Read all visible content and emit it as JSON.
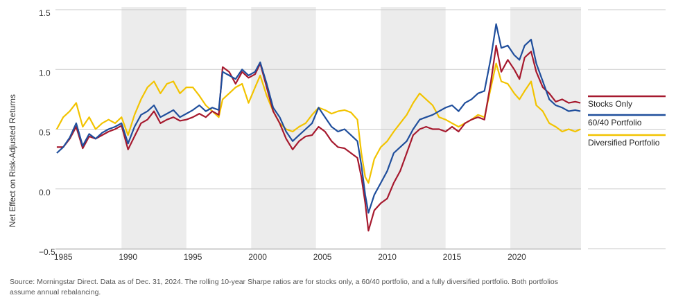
{
  "chart_data": {
    "type": "line",
    "xlabel": "",
    "ylabel": "Net Effect on Risk-Adjusted Returns",
    "xlim": [
      1984.4,
      2024.95
    ],
    "ylim": [
      -0.5,
      1.5
    ],
    "x_ticks": [
      1985,
      1990,
      1995,
      2000,
      2005,
      2010,
      2015,
      2020
    ],
    "y_ticks": [
      1.5,
      1.0,
      0.5,
      0.0,
      -0.5
    ],
    "y_tick_labels": [
      "1.5",
      "1.0",
      "0.5",
      "0.0",
      "−0.5"
    ],
    "grid": "horizontal",
    "shaded_bands": [
      [
        1989.5,
        1994.5
      ],
      [
        1999.5,
        2004.5
      ],
      [
        2009.5,
        2014.5
      ],
      [
        2019.5,
        2024.95
      ]
    ],
    "legend_position": "right",
    "series": [
      {
        "name": "Stocks Only",
        "color": "#a6192e",
        "points": [
          [
            1984.5,
            0.35
          ],
          [
            1985,
            0.35
          ],
          [
            1985.5,
            0.42
          ],
          [
            1986,
            0.52
          ],
          [
            1986.5,
            0.34
          ],
          [
            1987,
            0.44
          ],
          [
            1987.5,
            0.42
          ],
          [
            1988,
            0.45
          ],
          [
            1988.5,
            0.48
          ],
          [
            1989,
            0.5
          ],
          [
            1989.5,
            0.53
          ],
          [
            1990,
            0.33
          ],
          [
            1990.5,
            0.44
          ],
          [
            1991,
            0.55
          ],
          [
            1991.5,
            0.58
          ],
          [
            1992,
            0.65
          ],
          [
            1992.5,
            0.55
          ],
          [
            1993,
            0.58
          ],
          [
            1993.5,
            0.6
          ],
          [
            1994,
            0.57
          ],
          [
            1994.5,
            0.58
          ],
          [
            1995,
            0.6
          ],
          [
            1995.5,
            0.63
          ],
          [
            1996,
            0.6
          ],
          [
            1996.5,
            0.65
          ],
          [
            1997,
            0.62
          ],
          [
            1997.3,
            1.02
          ],
          [
            1997.8,
            0.98
          ],
          [
            1998.3,
            0.88
          ],
          [
            1998.8,
            0.98
          ],
          [
            1999.3,
            0.93
          ],
          [
            1999.8,
            0.96
          ],
          [
            2000.2,
            1.05
          ],
          [
            2000.7,
            0.85
          ],
          [
            2001.2,
            0.65
          ],
          [
            2001.7,
            0.55
          ],
          [
            2002.2,
            0.42
          ],
          [
            2002.7,
            0.33
          ],
          [
            2003.2,
            0.4
          ],
          [
            2003.7,
            0.44
          ],
          [
            2004.2,
            0.45
          ],
          [
            2004.7,
            0.52
          ],
          [
            2005.2,
            0.48
          ],
          [
            2005.7,
            0.4
          ],
          [
            2006.2,
            0.35
          ],
          [
            2006.7,
            0.34
          ],
          [
            2007.2,
            0.3
          ],
          [
            2007.7,
            0.26
          ],
          [
            2008,
            0.1
          ],
          [
            2008.3,
            -0.12
          ],
          [
            2008.55,
            -0.35
          ],
          [
            2009,
            -0.18
          ],
          [
            2009.5,
            -0.12
          ],
          [
            2010,
            -0.08
          ],
          [
            2010.5,
            0.05
          ],
          [
            2011,
            0.15
          ],
          [
            2011.5,
            0.3
          ],
          [
            2012,
            0.45
          ],
          [
            2012.5,
            0.5
          ],
          [
            2013,
            0.52
          ],
          [
            2013.5,
            0.5
          ],
          [
            2014,
            0.5
          ],
          [
            2014.5,
            0.48
          ],
          [
            2015,
            0.52
          ],
          [
            2015.5,
            0.48
          ],
          [
            2016,
            0.55
          ],
          [
            2016.5,
            0.58
          ],
          [
            2017,
            0.6
          ],
          [
            2017.5,
            0.58
          ],
          [
            2018,
            0.9
          ],
          [
            2018.4,
            1.2
          ],
          [
            2018.8,
            0.98
          ],
          [
            2019.3,
            1.08
          ],
          [
            2019.8,
            1.0
          ],
          [
            2020.2,
            0.92
          ],
          [
            2020.6,
            1.1
          ],
          [
            2021.1,
            1.15
          ],
          [
            2021.5,
            0.98
          ],
          [
            2022,
            0.85
          ],
          [
            2022.5,
            0.8
          ],
          [
            2023,
            0.73
          ],
          [
            2023.5,
            0.75
          ],
          [
            2024,
            0.72
          ],
          [
            2024.5,
            0.73
          ],
          [
            2024.9,
            0.72
          ]
        ]
      },
      {
        "name": "60/40 Portfolio",
        "color": "#1f4e9c",
        "points": [
          [
            1984.5,
            0.3
          ],
          [
            1985,
            0.35
          ],
          [
            1985.5,
            0.43
          ],
          [
            1986,
            0.55
          ],
          [
            1986.5,
            0.36
          ],
          [
            1987,
            0.46
          ],
          [
            1987.5,
            0.42
          ],
          [
            1988,
            0.47
          ],
          [
            1988.5,
            0.5
          ],
          [
            1989,
            0.52
          ],
          [
            1989.5,
            0.55
          ],
          [
            1990,
            0.38
          ],
          [
            1990.5,
            0.52
          ],
          [
            1991,
            0.62
          ],
          [
            1991.5,
            0.65
          ],
          [
            1992,
            0.7
          ],
          [
            1992.5,
            0.6
          ],
          [
            1993,
            0.63
          ],
          [
            1993.5,
            0.66
          ],
          [
            1994,
            0.6
          ],
          [
            1994.5,
            0.63
          ],
          [
            1995,
            0.66
          ],
          [
            1995.5,
            0.7
          ],
          [
            1996,
            0.65
          ],
          [
            1996.5,
            0.68
          ],
          [
            1997,
            0.66
          ],
          [
            1997.3,
            0.98
          ],
          [
            1997.8,
            0.95
          ],
          [
            1998.3,
            0.92
          ],
          [
            1998.8,
            1.0
          ],
          [
            1999.3,
            0.95
          ],
          [
            1999.8,
            0.98
          ],
          [
            2000.2,
            1.06
          ],
          [
            2000.7,
            0.88
          ],
          [
            2001.2,
            0.68
          ],
          [
            2001.7,
            0.6
          ],
          [
            2002.2,
            0.48
          ],
          [
            2002.7,
            0.4
          ],
          [
            2003.2,
            0.45
          ],
          [
            2003.7,
            0.5
          ],
          [
            2004.2,
            0.55
          ],
          [
            2004.7,
            0.68
          ],
          [
            2005.2,
            0.6
          ],
          [
            2005.7,
            0.52
          ],
          [
            2006.2,
            0.48
          ],
          [
            2006.7,
            0.5
          ],
          [
            2007.2,
            0.45
          ],
          [
            2007.7,
            0.4
          ],
          [
            2008,
            0.2
          ],
          [
            2008.3,
            -0.05
          ],
          [
            2008.55,
            -0.2
          ],
          [
            2009,
            -0.05
          ],
          [
            2009.5,
            0.05
          ],
          [
            2010,
            0.15
          ],
          [
            2010.5,
            0.3
          ],
          [
            2011,
            0.35
          ],
          [
            2011.5,
            0.4
          ],
          [
            2012,
            0.5
          ],
          [
            2012.5,
            0.58
          ],
          [
            2013,
            0.6
          ],
          [
            2013.5,
            0.62
          ],
          [
            2014,
            0.65
          ],
          [
            2014.5,
            0.68
          ],
          [
            2015,
            0.7
          ],
          [
            2015.5,
            0.65
          ],
          [
            2016,
            0.72
          ],
          [
            2016.5,
            0.75
          ],
          [
            2017,
            0.8
          ],
          [
            2017.5,
            0.82
          ],
          [
            2018,
            1.1
          ],
          [
            2018.4,
            1.38
          ],
          [
            2018.8,
            1.18
          ],
          [
            2019.3,
            1.2
          ],
          [
            2019.8,
            1.12
          ],
          [
            2020.2,
            1.08
          ],
          [
            2020.6,
            1.2
          ],
          [
            2021.1,
            1.25
          ],
          [
            2021.5,
            1.05
          ],
          [
            2022,
            0.9
          ],
          [
            2022.5,
            0.75
          ],
          [
            2023,
            0.7
          ],
          [
            2023.5,
            0.68
          ],
          [
            2024,
            0.65
          ],
          [
            2024.5,
            0.66
          ],
          [
            2024.9,
            0.65
          ]
        ]
      },
      {
        "name": "Diversified Portfolio",
        "color": "#f2c300",
        "points": [
          [
            1984.5,
            0.5
          ],
          [
            1985,
            0.6
          ],
          [
            1985.5,
            0.65
          ],
          [
            1986,
            0.72
          ],
          [
            1986.5,
            0.52
          ],
          [
            1987,
            0.6
          ],
          [
            1987.5,
            0.5
          ],
          [
            1988,
            0.55
          ],
          [
            1988.5,
            0.58
          ],
          [
            1989,
            0.55
          ],
          [
            1989.5,
            0.6
          ],
          [
            1990,
            0.45
          ],
          [
            1990.5,
            0.62
          ],
          [
            1991,
            0.75
          ],
          [
            1991.5,
            0.85
          ],
          [
            1992,
            0.9
          ],
          [
            1992.5,
            0.8
          ],
          [
            1993,
            0.88
          ],
          [
            1993.5,
            0.9
          ],
          [
            1994,
            0.8
          ],
          [
            1994.5,
            0.85
          ],
          [
            1995,
            0.85
          ],
          [
            1995.5,
            0.78
          ],
          [
            1996,
            0.7
          ],
          [
            1996.5,
            0.65
          ],
          [
            1997,
            0.6
          ],
          [
            1997.3,
            0.75
          ],
          [
            1997.8,
            0.8
          ],
          [
            1998.3,
            0.85
          ],
          [
            1998.8,
            0.88
          ],
          [
            1999.3,
            0.72
          ],
          [
            1999.8,
            0.85
          ],
          [
            2000.2,
            0.95
          ],
          [
            2000.7,
            0.78
          ],
          [
            2001.2,
            0.65
          ],
          [
            2001.7,
            0.55
          ],
          [
            2002.2,
            0.5
          ],
          [
            2002.7,
            0.48
          ],
          [
            2003.2,
            0.52
          ],
          [
            2003.7,
            0.55
          ],
          [
            2004.2,
            0.62
          ],
          [
            2004.7,
            0.68
          ],
          [
            2005.2,
            0.66
          ],
          [
            2005.7,
            0.63
          ],
          [
            2006.2,
            0.65
          ],
          [
            2006.7,
            0.66
          ],
          [
            2007.2,
            0.64
          ],
          [
            2007.7,
            0.58
          ],
          [
            2008,
            0.3
          ],
          [
            2008.3,
            0.1
          ],
          [
            2008.55,
            0.05
          ],
          [
            2009,
            0.25
          ],
          [
            2009.5,
            0.35
          ],
          [
            2010,
            0.4
          ],
          [
            2010.5,
            0.48
          ],
          [
            2011,
            0.55
          ],
          [
            2011.5,
            0.62
          ],
          [
            2012,
            0.72
          ],
          [
            2012.5,
            0.8
          ],
          [
            2013,
            0.75
          ],
          [
            2013.5,
            0.7
          ],
          [
            2014,
            0.6
          ],
          [
            2014.5,
            0.58
          ],
          [
            2015,
            0.55
          ],
          [
            2015.5,
            0.52
          ],
          [
            2016,
            0.55
          ],
          [
            2016.5,
            0.58
          ],
          [
            2017,
            0.62
          ],
          [
            2017.5,
            0.6
          ],
          [
            2018,
            0.85
          ],
          [
            2018.4,
            1.05
          ],
          [
            2018.8,
            0.9
          ],
          [
            2019.3,
            0.88
          ],
          [
            2019.8,
            0.8
          ],
          [
            2020.2,
            0.75
          ],
          [
            2020.6,
            0.82
          ],
          [
            2021.1,
            0.9
          ],
          [
            2021.5,
            0.7
          ],
          [
            2022,
            0.65
          ],
          [
            2022.5,
            0.55
          ],
          [
            2023,
            0.52
          ],
          [
            2023.5,
            0.48
          ],
          [
            2024,
            0.5
          ],
          [
            2024.5,
            0.48
          ],
          [
            2024.9,
            0.5
          ]
        ]
      }
    ]
  },
  "source_note": "Source: Morningstar Direct. Data as of Dec. 31, 2024. The rolling 10-year Sharpe ratios are for stocks only, a 60/40 portfolio, and a fully diversified portfolio. Both portfolios assume annual rebalancing."
}
